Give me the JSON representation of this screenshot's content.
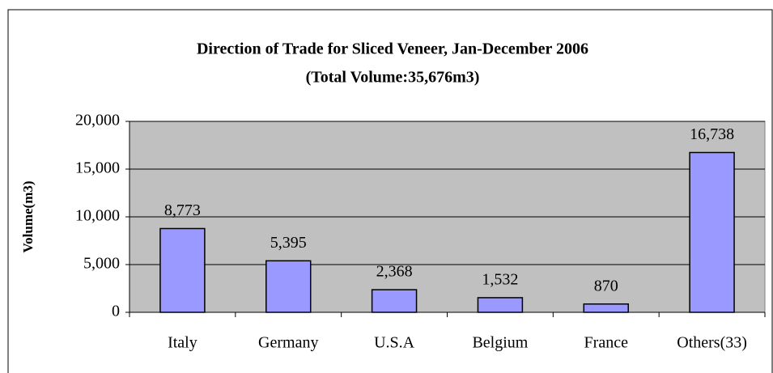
{
  "chart_data": {
    "type": "bar",
    "title": "Direction of Trade for Sliced Veneer, Jan-December 2006",
    "subtitle": "(Total Volume:35,676m3)",
    "y_label": "Volume(m3)",
    "categories": [
      "Italy",
      "Germany",
      "U.S.A",
      "Belgium",
      "France",
      "Others(33)"
    ],
    "values": [
      8773,
      5395,
      2368,
      1532,
      870,
      16738
    ],
    "value_labels": [
      "8,773",
      "5,395",
      "2,368",
      "1,532",
      "870",
      "16,738"
    ],
    "color": "#9999ff",
    "ylim": [
      0,
      20000
    ],
    "yticks": [
      0,
      {
        "value": 5000,
        "label": "5,000"
      },
      {
        "value": 10000,
        "label": "10,000"
      },
      {
        "value": 15000,
        "label": "15,000"
      },
      {
        "value": 20000,
        "label": "20,000"
      }
    ],
    "grid": true
  }
}
